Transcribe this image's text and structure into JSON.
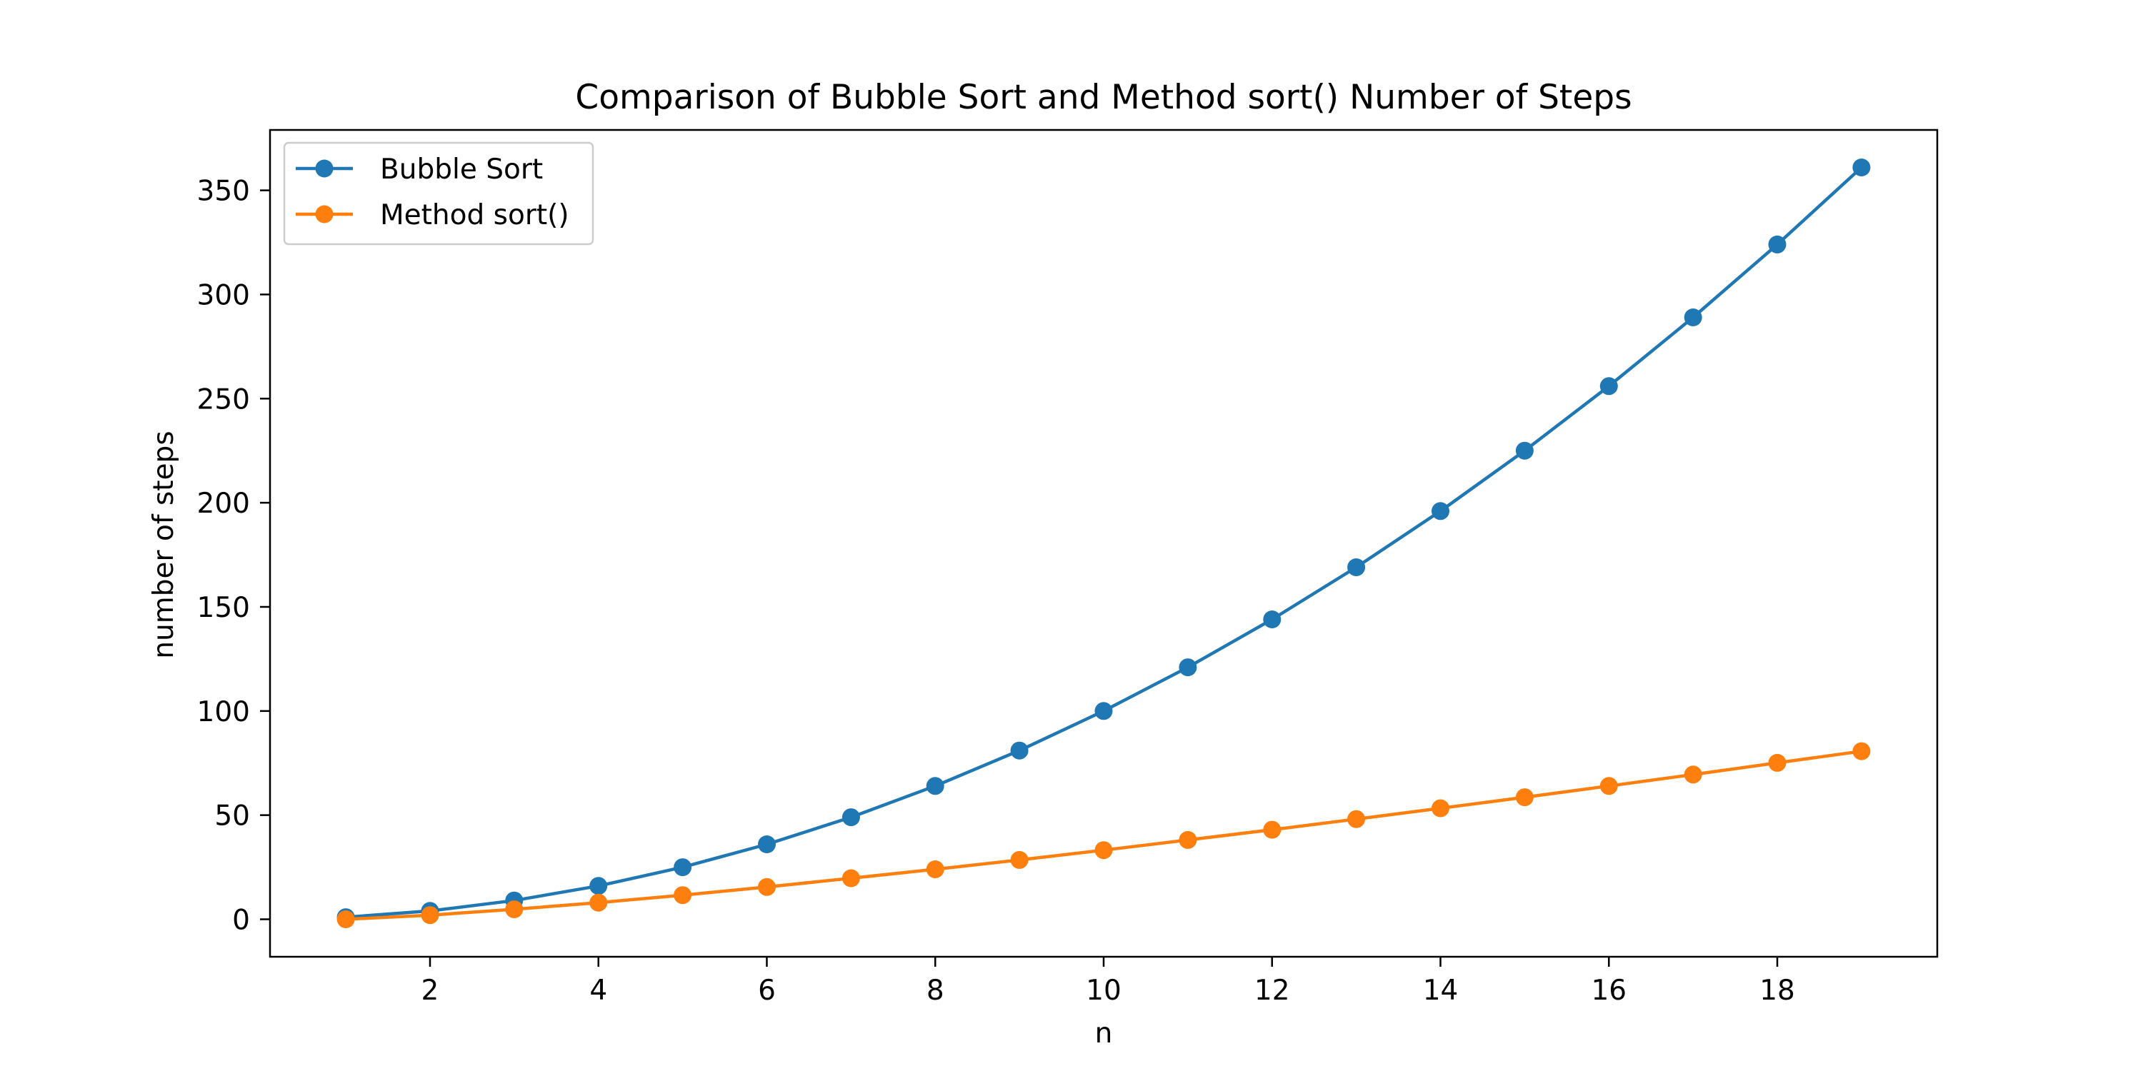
{
  "chart_data": {
    "type": "line",
    "title": "Comparison of Bubble Sort and Method sort() Number of Steps",
    "xlabel": "n",
    "ylabel": "number of steps",
    "x": [
      1,
      2,
      3,
      4,
      5,
      6,
      7,
      8,
      9,
      10,
      11,
      12,
      13,
      14,
      15,
      16,
      17,
      18,
      19
    ],
    "xlim": [
      0.1,
      19.9
    ],
    "ylim": [
      -18,
      379
    ],
    "xticks": [
      2,
      4,
      6,
      8,
      10,
      12,
      14,
      16,
      18
    ],
    "yticks": [
      0,
      50,
      100,
      150,
      200,
      250,
      300,
      350
    ],
    "grid": false,
    "legend_position": "top-left",
    "series": [
      {
        "name": "Bubble Sort",
        "color": "#1f77b4",
        "marker": "circle",
        "values": [
          1,
          4,
          9,
          16,
          25,
          36,
          49,
          64,
          81,
          100,
          121,
          144,
          169,
          196,
          225,
          256,
          289,
          324,
          361
        ]
      },
      {
        "name": "Method sort()",
        "color": "#ff7f0e",
        "marker": "circle",
        "values": [
          0,
          2,
          4.8,
          8,
          11.6,
          15.5,
          19.7,
          24,
          28.5,
          33.2,
          38.1,
          43,
          48.1,
          53.3,
          58.6,
          64,
          69.5,
          75.1,
          80.7
        ]
      }
    ]
  }
}
